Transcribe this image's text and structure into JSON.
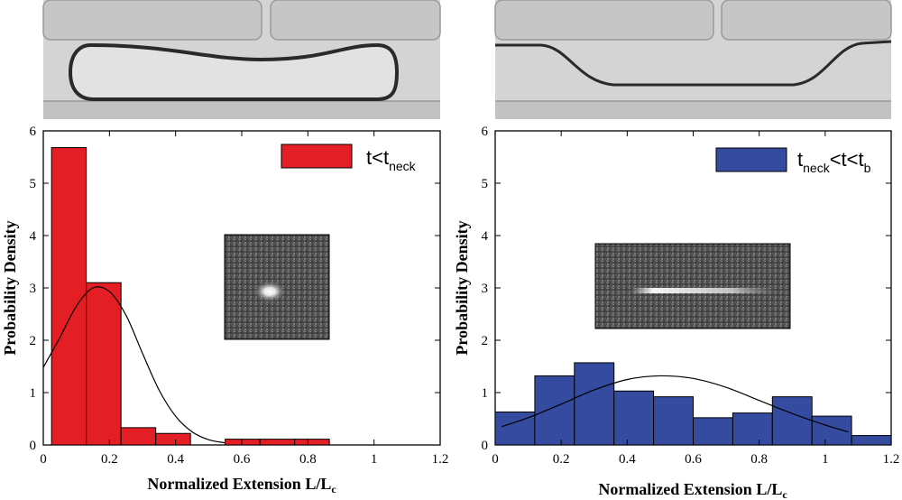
{
  "chart_data": [
    {
      "type": "bar",
      "panel": "left",
      "xlabel": "Normalized Extension L/L",
      "xlabel_sub": "c",
      "ylabel": "Probability Density",
      "xlim": [
        0,
        1.2
      ],
      "ylim": [
        0,
        6
      ],
      "xticks": [
        "0",
        "0.2",
        "0.4",
        "0.6",
        "0.8",
        "1",
        "1.2"
      ],
      "yticks": [
        "0",
        "1",
        "2",
        "3",
        "4",
        "5",
        "6"
      ],
      "legend": {
        "text": "t<t",
        "sub": "neck",
        "placement": "top-right"
      },
      "color": "#e31e24",
      "bins": [
        {
          "x0": 0.025,
          "x1": 0.13,
          "y": 5.68
        },
        {
          "x0": 0.13,
          "x1": 0.235,
          "y": 3.1
        },
        {
          "x0": 0.235,
          "x1": 0.34,
          "y": 0.33
        },
        {
          "x0": 0.34,
          "x1": 0.445,
          "y": 0.22
        },
        {
          "x0": 0.55,
          "x1": 0.655,
          "y": 0.11
        },
        {
          "x0": 0.655,
          "x1": 0.76,
          "y": 0.11
        },
        {
          "x0": 0.76,
          "x1": 0.865,
          "y": 0.11
        }
      ],
      "fit": {
        "x": [
          0,
          0.05,
          0.1,
          0.15,
          0.2,
          0.25,
          0.3,
          0.35,
          0.4,
          0.45,
          0.5,
          0.55
        ],
        "y": [
          1.48,
          2.05,
          2.65,
          3.0,
          2.93,
          2.48,
          1.75,
          1.05,
          0.55,
          0.25,
          0.1,
          0.04
        ]
      }
    },
    {
      "type": "bar",
      "panel": "right",
      "xlabel": "Normalized Extension L/L",
      "xlabel_sub": "c",
      "ylabel": "Probability Density",
      "xlim": [
        0,
        1.2
      ],
      "ylim": [
        0,
        6
      ],
      "xticks": [
        "0",
        "0.2",
        "0.4",
        "0.6",
        "0.8",
        "1",
        "1.2"
      ],
      "yticks": [
        "0",
        "1",
        "2",
        "3",
        "4",
        "5",
        "6"
      ],
      "legend": {
        "text": "t",
        "sub": "neck",
        "text2": "<t<t",
        "sub2": "b",
        "placement": "top-right"
      },
      "color": "#344ba0",
      "bins": [
        {
          "x0": 0.0,
          "x1": 0.12,
          "y": 0.63
        },
        {
          "x0": 0.12,
          "x1": 0.24,
          "y": 1.32
        },
        {
          "x0": 0.24,
          "x1": 0.36,
          "y": 1.57
        },
        {
          "x0": 0.36,
          "x1": 0.48,
          "y": 1.03
        },
        {
          "x0": 0.48,
          "x1": 0.6,
          "y": 0.92
        },
        {
          "x0": 0.6,
          "x1": 0.72,
          "y": 0.52
        },
        {
          "x0": 0.72,
          "x1": 0.84,
          "y": 0.61
        },
        {
          "x0": 0.84,
          "x1": 0.96,
          "y": 0.92
        },
        {
          "x0": 0.96,
          "x1": 1.08,
          "y": 0.55
        },
        {
          "x0": 1.08,
          "x1": 1.2,
          "y": 0.18
        }
      ],
      "fit": {
        "x": [
          0.02,
          0.1,
          0.2,
          0.3,
          0.4,
          0.5,
          0.6,
          0.7,
          0.8,
          0.9,
          1.0,
          1.07
        ],
        "y": [
          0.35,
          0.52,
          0.78,
          1.05,
          1.25,
          1.32,
          1.27,
          1.1,
          0.85,
          0.6,
          0.38,
          0.25
        ]
      }
    }
  ]
}
